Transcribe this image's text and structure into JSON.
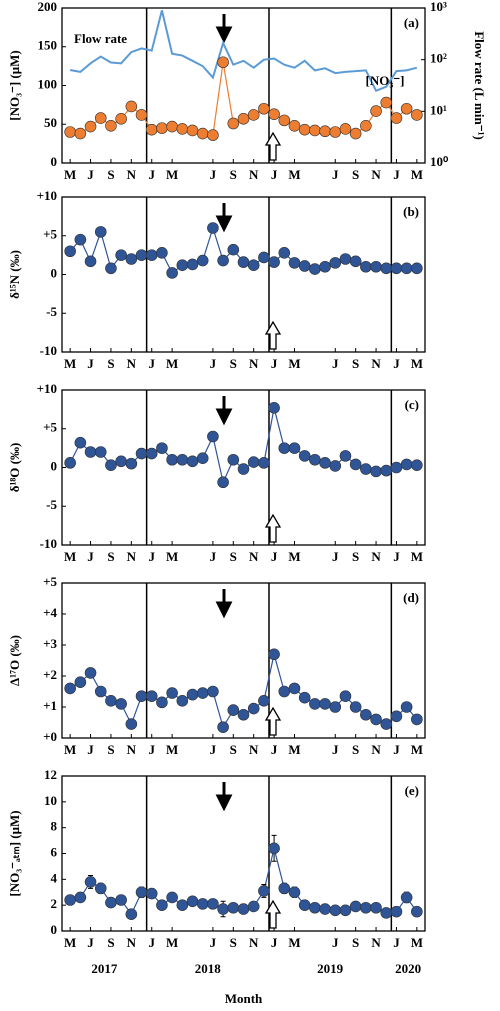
{
  "chart_data": [
    {
      "type": "line",
      "panel_label": "(a)",
      "ylabel": "[NO₃⁻] (μM)",
      "y2label": "Flow rate (L min⁻¹)",
      "x": [
        4,
        5,
        6,
        7,
        8,
        9,
        10,
        11,
        12,
        13,
        14,
        15,
        16,
        17,
        18,
        19,
        20,
        21,
        22,
        23,
        24,
        25,
        26,
        27,
        28,
        29,
        30,
        31,
        32,
        33,
        34,
        35,
        36,
        37,
        38
      ],
      "xlim": [
        3.2,
        38.8
      ],
      "xticks": [
        {
          "value": 4,
          "label": "M"
        },
        {
          "value": 6,
          "label": "J"
        },
        {
          "value": 8,
          "label": "S"
        },
        {
          "value": 10,
          "label": "N"
        },
        {
          "value": 12,
          "label": "J"
        },
        {
          "value": 14,
          "label": "M"
        },
        {
          "value": 18,
          "label": "J"
        },
        {
          "value": 20,
          "label": "S"
        },
        {
          "value": 22,
          "label": "N"
        },
        {
          "value": 24,
          "label": "J"
        },
        {
          "value": 26,
          "label": "M"
        },
        {
          "value": 30,
          "label": "J"
        },
        {
          "value": 32,
          "label": "S"
        },
        {
          "value": 34,
          "label": "N"
        },
        {
          "value": 36,
          "label": "J"
        },
        {
          "value": 38,
          "label": "M"
        }
      ],
      "vlines": [
        11.5,
        23.5,
        35.5
      ],
      "ylim": [
        0,
        200
      ],
      "yticks": [
        0,
        50,
        100,
        150,
        200
      ],
      "ylabel_color": "#ED7D31",
      "y2lim": [
        1,
        1000
      ],
      "y2_scale": "log",
      "y2label_color": "#5B9BD5",
      "y2ticks": [
        {
          "value": 1,
          "label": "10⁰"
        },
        {
          "value": 10,
          "label": "10¹"
        },
        {
          "value": 100,
          "label": "10²"
        },
        {
          "value": 1000,
          "label": "10³"
        }
      ],
      "series": [
        {
          "name": "Flow rate",
          "color": "#5B9BD5",
          "axis": "y2",
          "marker": false,
          "values": [
            63,
            58,
            85,
            115,
            88,
            85,
            140,
            165,
            150,
            900,
            130,
            120,
            95,
            75,
            45,
            210,
            80,
            95,
            70,
            100,
            105,
            80,
            70,
            95,
            62,
            68,
            55,
            58,
            60,
            62,
            25,
            30,
            60,
            62,
            70
          ]
        },
        {
          "name": "[NO₃⁻]",
          "color": "#ED7D31",
          "marker": true,
          "values": [
            40,
            38,
            47,
            58,
            48,
            57,
            73,
            62,
            43,
            45,
            47,
            44,
            42,
            38,
            36,
            130,
            51,
            57,
            62,
            70,
            63,
            55,
            48,
            43,
            42,
            41,
            40,
            44,
            38,
            48,
            67,
            78,
            58,
            70,
            62
          ]
        }
      ]
    },
    {
      "type": "line",
      "panel_label": "(b)",
      "ylabel": "δ¹⁵N (‰)",
      "x": [
        4,
        5,
        6,
        7,
        8,
        9,
        10,
        11,
        12,
        13,
        14,
        15,
        16,
        17,
        18,
        19,
        20,
        21,
        22,
        23,
        24,
        25,
        26,
        27,
        28,
        29,
        30,
        31,
        32,
        33,
        34,
        35,
        36,
        37,
        38
      ],
      "xlim": [
        3.2,
        38.8
      ],
      "xticks": [
        {
          "value": 4,
          "label": "M"
        },
        {
          "value": 6,
          "label": "J"
        },
        {
          "value": 8,
          "label": "S"
        },
        {
          "value": 10,
          "label": "N"
        },
        {
          "value": 12,
          "label": "J"
        },
        {
          "value": 14,
          "label": "M"
        },
        {
          "value": 18,
          "label": "J"
        },
        {
          "value": 20,
          "label": "S"
        },
        {
          "value": 22,
          "label": "N"
        },
        {
          "value": 24,
          "label": "J"
        },
        {
          "value": 26,
          "label": "M"
        },
        {
          "value": 30,
          "label": "J"
        },
        {
          "value": 32,
          "label": "S"
        },
        {
          "value": 34,
          "label": "N"
        },
        {
          "value": 36,
          "label": "J"
        },
        {
          "value": 38,
          "label": "M"
        }
      ],
      "vlines": [
        11.5,
        23.5,
        35.5
      ],
      "ylim": [
        -10,
        10
      ],
      "yticks": [
        -10,
        -5,
        0,
        {
          "value": 5,
          "label": "+5"
        },
        {
          "value": 10,
          "label": "+10"
        }
      ],
      "series": [
        {
          "name": "δ¹⁵N",
          "color": "#2F5597",
          "marker": true,
          "values": [
            3.0,
            4.5,
            1.7,
            5.5,
            0.8,
            2.5,
            2.0,
            2.5,
            2.5,
            2.8,
            0.2,
            1.2,
            1.3,
            1.8,
            6.0,
            1.8,
            3.2,
            1.6,
            1.2,
            2.2,
            1.6,
            2.8,
            1.5,
            1.1,
            0.7,
            1.0,
            1.5,
            2.0,
            1.7,
            1.0,
            1.0,
            0.8,
            0.8,
            0.8,
            0.8
          ]
        }
      ]
    },
    {
      "type": "line",
      "panel_label": "(c)",
      "ylabel": "δ¹⁸O (‰)",
      "x": [
        4,
        5,
        6,
        7,
        8,
        9,
        10,
        11,
        12,
        13,
        14,
        15,
        16,
        17,
        18,
        19,
        20,
        21,
        22,
        23,
        24,
        25,
        26,
        27,
        28,
        29,
        30,
        31,
        32,
        33,
        34,
        35,
        36,
        37,
        38
      ],
      "xlim": [
        3.2,
        38.8
      ],
      "xticks": [
        {
          "value": 4,
          "label": "M"
        },
        {
          "value": 6,
          "label": "J"
        },
        {
          "value": 8,
          "label": "S"
        },
        {
          "value": 10,
          "label": "N"
        },
        {
          "value": 12,
          "label": "J"
        },
        {
          "value": 14,
          "label": "M"
        },
        {
          "value": 18,
          "label": "J"
        },
        {
          "value": 20,
          "label": "S"
        },
        {
          "value": 22,
          "label": "N"
        },
        {
          "value": 24,
          "label": "J"
        },
        {
          "value": 26,
          "label": "M"
        },
        {
          "value": 30,
          "label": "J"
        },
        {
          "value": 32,
          "label": "S"
        },
        {
          "value": 34,
          "label": "N"
        },
        {
          "value": 36,
          "label": "J"
        },
        {
          "value": 38,
          "label": "M"
        }
      ],
      "vlines": [
        11.5,
        23.5,
        35.5
      ],
      "ylim": [
        -10,
        10
      ],
      "yticks": [
        -10,
        -5,
        0,
        {
          "value": 5,
          "label": "+5"
        },
        {
          "value": 10,
          "label": "+10"
        }
      ],
      "series": [
        {
          "name": "δ¹⁸O",
          "color": "#2F5597",
          "marker": true,
          "values": [
            0.6,
            3.2,
            2.0,
            2.0,
            0.3,
            0.8,
            0.5,
            1.8,
            1.8,
            2.5,
            1.0,
            1.0,
            0.8,
            1.2,
            4.0,
            -1.9,
            1.0,
            -0.2,
            0.7,
            0.6,
            7.7,
            2.5,
            2.5,
            1.5,
            1.0,
            0.6,
            0.2,
            1.5,
            0.4,
            -0.2,
            -0.5,
            -0.4,
            0.0,
            0.4,
            0.3
          ]
        }
      ]
    },
    {
      "type": "line",
      "panel_label": "(d)",
      "ylabel": "Δ¹⁷O (‰)",
      "x": [
        4,
        5,
        6,
        7,
        8,
        9,
        10,
        11,
        12,
        13,
        14,
        15,
        16,
        17,
        18,
        19,
        20,
        21,
        22,
        23,
        24,
        25,
        26,
        27,
        28,
        29,
        30,
        31,
        32,
        33,
        34,
        35,
        36,
        37,
        38
      ],
      "xlim": [
        3.2,
        38.8
      ],
      "xticks": [
        {
          "value": 4,
          "label": "M"
        },
        {
          "value": 6,
          "label": "J"
        },
        {
          "value": 8,
          "label": "S"
        },
        {
          "value": 10,
          "label": "N"
        },
        {
          "value": 12,
          "label": "J"
        },
        {
          "value": 14,
          "label": "M"
        },
        {
          "value": 18,
          "label": "J"
        },
        {
          "value": 20,
          "label": "S"
        },
        {
          "value": 22,
          "label": "N"
        },
        {
          "value": 24,
          "label": "J"
        },
        {
          "value": 26,
          "label": "M"
        },
        {
          "value": 30,
          "label": "J"
        },
        {
          "value": 32,
          "label": "S"
        },
        {
          "value": 34,
          "label": "N"
        },
        {
          "value": 36,
          "label": "J"
        },
        {
          "value": 38,
          "label": "M"
        }
      ],
      "vlines": [
        11.5,
        23.5,
        35.5
      ],
      "ylim": [
        0,
        5
      ],
      "yticks": [
        {
          "value": 0,
          "label": "+0"
        },
        {
          "value": 1,
          "label": "+1"
        },
        {
          "value": 2,
          "label": "+2"
        },
        {
          "value": 3,
          "label": "+3"
        },
        {
          "value": 4,
          "label": "+4"
        },
        {
          "value": 5,
          "label": "+5"
        }
      ],
      "series": [
        {
          "name": "Δ¹⁷O",
          "color": "#2F5597",
          "marker": true,
          "values": [
            1.6,
            1.8,
            2.1,
            1.5,
            1.2,
            1.1,
            0.45,
            1.35,
            1.35,
            1.15,
            1.45,
            1.2,
            1.4,
            1.45,
            1.5,
            0.35,
            0.9,
            0.75,
            0.95,
            1.2,
            2.7,
            1.5,
            1.6,
            1.3,
            1.1,
            1.1,
            1.0,
            1.35,
            1.0,
            0.75,
            0.6,
            0.45,
            0.7,
            1.0,
            0.6
          ]
        }
      ]
    },
    {
      "type": "line",
      "panel_label": "(e)",
      "ylabel": "[NO₃⁻ₐₜₘ] (μM)",
      "xlabel": "Month",
      "year_labels": [
        "2017",
        "2018",
        "2019",
        "2020"
      ],
      "x": [
        4,
        5,
        6,
        7,
        8,
        9,
        10,
        11,
        12,
        13,
        14,
        15,
        16,
        17,
        18,
        19,
        20,
        21,
        22,
        23,
        24,
        25,
        26,
        27,
        28,
        29,
        30,
        31,
        32,
        33,
        34,
        35,
        36,
        37,
        38
      ],
      "xlim": [
        3.2,
        38.8
      ],
      "xticks": [
        {
          "value": 4,
          "label": "M"
        },
        {
          "value": 6,
          "label": "J"
        },
        {
          "value": 8,
          "label": "S"
        },
        {
          "value": 10,
          "label": "N"
        },
        {
          "value": 12,
          "label": "J"
        },
        {
          "value": 14,
          "label": "M"
        },
        {
          "value": 18,
          "label": "J"
        },
        {
          "value": 20,
          "label": "S"
        },
        {
          "value": 22,
          "label": "N"
        },
        {
          "value": 24,
          "label": "J"
        },
        {
          "value": 26,
          "label": "M"
        },
        {
          "value": 30,
          "label": "J"
        },
        {
          "value": 32,
          "label": "S"
        },
        {
          "value": 34,
          "label": "N"
        },
        {
          "value": 36,
          "label": "J"
        },
        {
          "value": 38,
          "label": "M"
        }
      ],
      "vlines": [
        11.5,
        23.5,
        35.5
      ],
      "ylim": [
        0,
        12
      ],
      "yticks": [
        0,
        2,
        4,
        6,
        8,
        10,
        12
      ],
      "series": [
        {
          "name": "[NO₃⁻ₐₜₘ]",
          "color": "#2F5597",
          "marker": true,
          "values": [
            2.4,
            2.6,
            3.8,
            3.3,
            2.2,
            2.4,
            1.3,
            3.0,
            2.9,
            2.0,
            2.6,
            2.0,
            2.3,
            2.1,
            2.1,
            1.7,
            1.8,
            1.7,
            1.9,
            3.1,
            6.4,
            3.3,
            3.0,
            2.0,
            1.8,
            1.7,
            1.6,
            1.6,
            1.9,
            1.8,
            1.8,
            1.4,
            1.5,
            2.6,
            1.5
          ],
          "errors": [
            0.3,
            0.3,
            0.5,
            0.4,
            0.3,
            0.3,
            0.3,
            0.4,
            0.3,
            0.3,
            0.3,
            0.3,
            0.3,
            0.3,
            0.3,
            0.6,
            0.3,
            0.3,
            0.3,
            0.5,
            1.0,
            0.4,
            0.4,
            0.3,
            0.3,
            0.2,
            0.2,
            0.2,
            0.2,
            0.3,
            0.3,
            0.3,
            0.3,
            0.4,
            0.3
          ]
        }
      ]
    }
  ]
}
